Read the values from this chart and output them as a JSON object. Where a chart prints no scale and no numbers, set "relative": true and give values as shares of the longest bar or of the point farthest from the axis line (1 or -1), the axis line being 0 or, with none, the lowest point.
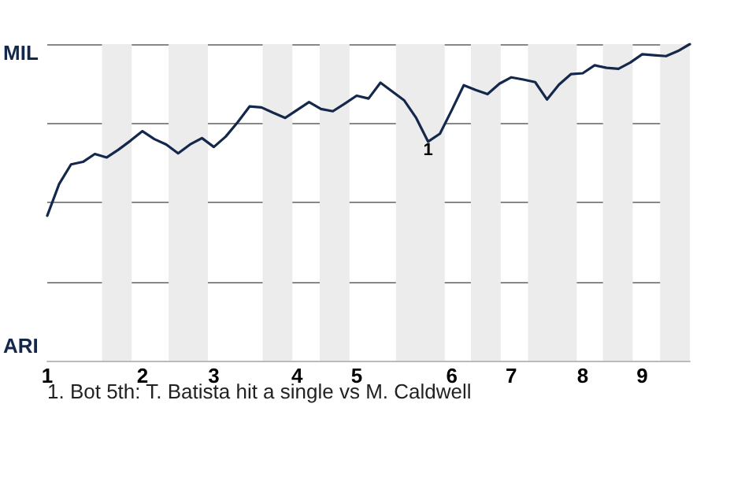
{
  "chart_data": {
    "type": "line",
    "relative": true,
    "categories": [
      "1",
      null,
      null,
      null,
      null,
      null,
      null,
      null,
      "2",
      null,
      null,
      null,
      null,
      null,
      "3",
      null,
      null,
      null,
      null,
      null,
      null,
      "4",
      null,
      null,
      null,
      null,
      "5",
      null,
      null,
      null,
      null,
      null,
      null,
      null,
      "6",
      null,
      null,
      null,
      null,
      "7",
      null,
      null,
      null,
      null,
      null,
      "8",
      null,
      null,
      null,
      null,
      "9",
      null,
      null,
      null,
      null
    ],
    "series": [
      {
        "color": "#14284b",
        "values": [
          0.458,
          0.558,
          0.62,
          0.628,
          0.653,
          0.642,
          0.667,
          0.695,
          0.725,
          0.7,
          0.683,
          0.655,
          0.683,
          0.703,
          0.675,
          0.708,
          0.753,
          0.803,
          0.8,
          0.783,
          0.767,
          0.792,
          0.817,
          0.795,
          0.788,
          0.812,
          0.837,
          0.828,
          0.878,
          0.85,
          0.822,
          0.767,
          0.692,
          0.717,
          0.792,
          0.87,
          0.855,
          0.842,
          0.875,
          0.895,
          0.888,
          0.88,
          0.825,
          0.872,
          0.905,
          0.908,
          0.933,
          0.925,
          0.922,
          0.942,
          0.968,
          0.965,
          0.962,
          0.978,
          1
        ]
      }
    ],
    "grid": "y",
    "marker": "none",
    "annotations": [
      "MIL",
      "ARI",
      {
        "text": "1",
        "y": 0.692
      },
      "1. Bot 5th: T. Batista hit a single vs M. Caldwell"
    ]
  }
}
